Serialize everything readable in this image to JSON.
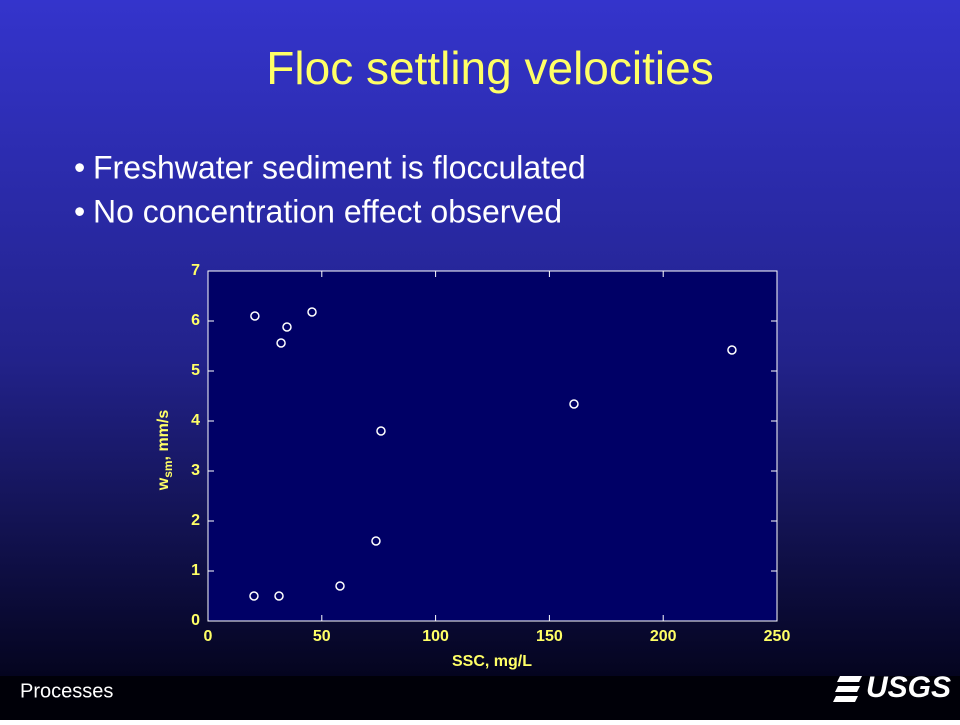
{
  "slide": {
    "title": "Floc settling velocities",
    "bullets": [
      "Freshwater sediment is flocculated",
      "No concentration effect observed"
    ],
    "footer": "Processes",
    "logo": "USGS"
  },
  "chart_data": {
    "type": "scatter",
    "xlabel": "SSC, mg/L",
    "ylabel": [
      "w",
      "sm",
      ", mm/s"
    ],
    "x": [
      20.6,
      34.7,
      32.1,
      45.7,
      76.0,
      73.8,
      58.0,
      20.2,
      31.2,
      160.8,
      230.2
    ],
    "values": [
      6.1,
      5.88,
      5.56,
      6.18,
      3.8,
      1.6,
      0.7,
      0.5,
      0.5,
      4.34,
      5.42
    ],
    "xlim": [
      0,
      250
    ],
    "ylim": [
      0,
      7
    ],
    "xticks": [
      0,
      50,
      100,
      150,
      200,
      250
    ],
    "yticks": [
      0,
      1,
      2,
      3,
      4,
      5,
      6,
      7
    ],
    "color": "#ffffff"
  }
}
